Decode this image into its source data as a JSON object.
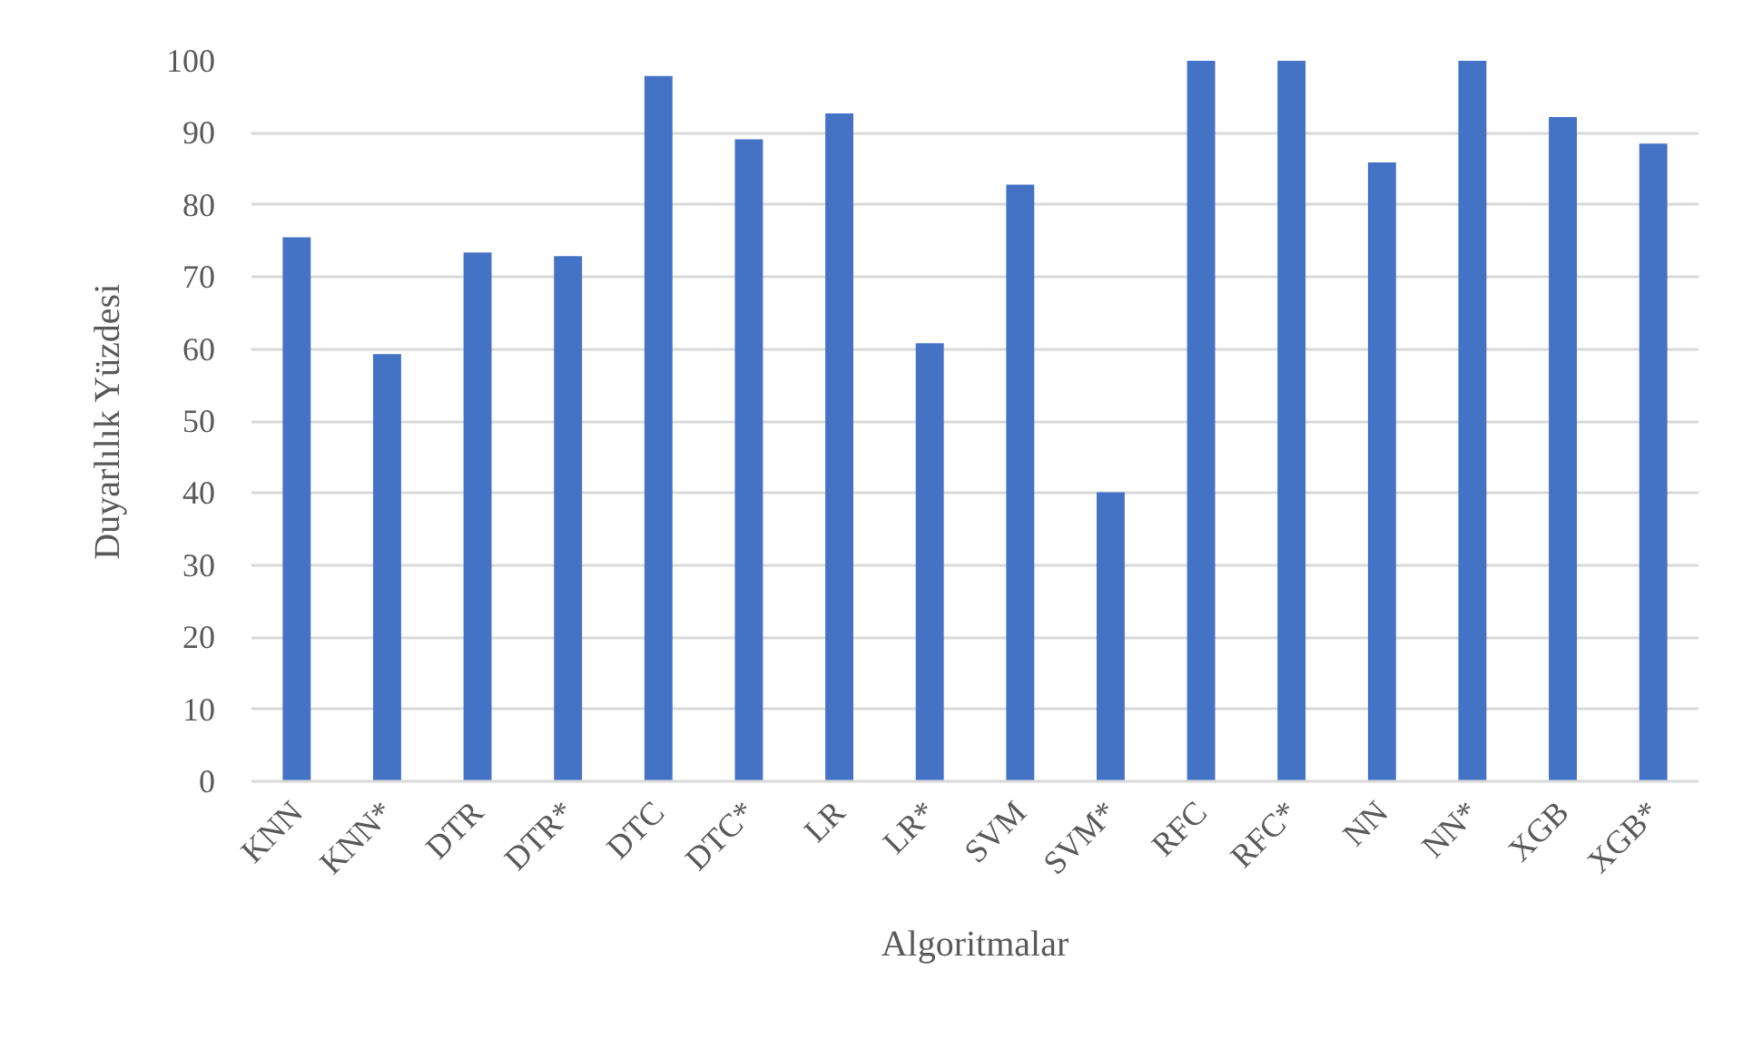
{
  "chart_data": {
    "type": "bar",
    "xlabel": "Algoritmalar",
    "ylabel": "Duyarlılık Yüzdesi",
    "categories": [
      "KNN",
      "KNN*",
      "DTR",
      "DTR*",
      "DTC",
      "DTC*",
      "LR",
      "LR*",
      "SVM",
      "SVM*",
      "RFC",
      "RFC*",
      "NN",
      "NN*",
      "XGB",
      "XGB*"
    ],
    "values": [
      75.5,
      59.3,
      73.4,
      72.9,
      97.9,
      89.1,
      92.7,
      60.8,
      82.8,
      40.1,
      100,
      100,
      85.9,
      100,
      92.2,
      88.5
    ],
    "color": "#4472c4",
    "ylim": [
      0,
      100
    ],
    "yticks": [
      0,
      10,
      20,
      30,
      40,
      50,
      60,
      70,
      80,
      90,
      100
    ],
    "grid": "y"
  }
}
